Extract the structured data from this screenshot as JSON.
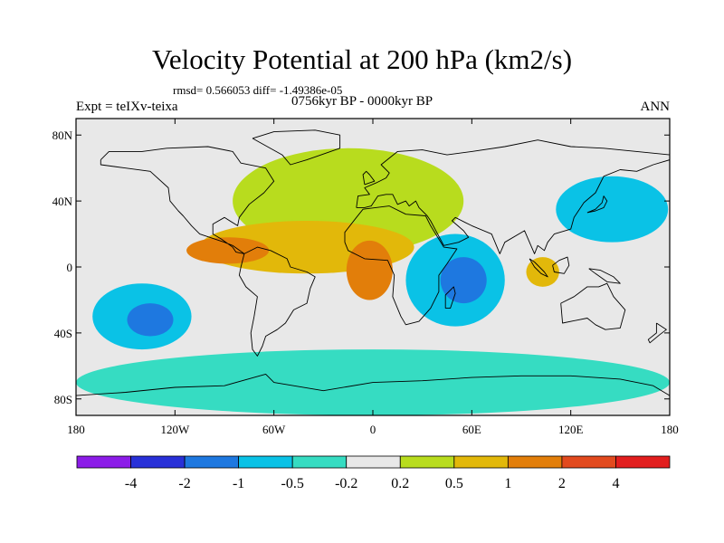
{
  "chart_data": {
    "type": "heatmap",
    "title": "Velocity Potential at 200 hPa (km2/s)",
    "stats_text": "rmsd= 0.566053 diff= -1.49386e-05",
    "left_label": "Expt = teIXv-teixa",
    "center_label": "0756kyr BP - 0000kyr BP",
    "right_label": "ANN",
    "x_ticks": [
      {
        "value": -180,
        "label": "180"
      },
      {
        "value": -120,
        "label": "120W"
      },
      {
        "value": -60,
        "label": "60W"
      },
      {
        "value": 0,
        "label": "0"
      },
      {
        "value": 60,
        "label": "60E"
      },
      {
        "value": 120,
        "label": "120E"
      },
      {
        "value": 180,
        "label": "180"
      }
    ],
    "y_ticks": [
      {
        "value": 80,
        "label": "80N"
      },
      {
        "value": 40,
        "label": "40N"
      },
      {
        "value": 0,
        "label": "0"
      },
      {
        "value": -40,
        "label": "40S"
      },
      {
        "value": -80,
        "label": "80S"
      }
    ],
    "x_range": [
      -180,
      180
    ],
    "y_range": [
      -90,
      90
    ],
    "colorbar": {
      "colors": [
        "#8c1ce8",
        "#2830d8",
        "#1e78e0",
        "#0ac2e6",
        "#36dcc2",
        "#e8e8e8",
        "#b8dc1e",
        "#e2b80a",
        "#e27e0a",
        "#e24a1e",
        "#e21e1e"
      ],
      "labels": [
        "-4",
        "-2",
        "-1",
        "-0.5",
        "-0.2",
        "0.2",
        "0.5",
        "1",
        "2",
        "4"
      ]
    },
    "fields": [
      {
        "name": "north-atlantic-eurasia-positive",
        "level": 0.35,
        "lon": -15,
        "lat": 40,
        "rx": 70,
        "ry": 32
      },
      {
        "name": "atlantic-positive",
        "level": 0.8,
        "lon": -40,
        "lat": 12,
        "rx": 65,
        "ry": 16
      },
      {
        "name": "caribbean-positive-core",
        "level": 1.5,
        "lon": -88,
        "lat": 10,
        "rx": 25,
        "ry": 8
      },
      {
        "name": "africa-positive-core",
        "level": 1.6,
        "lon": -2,
        "lat": -2,
        "rx": 14,
        "ry": 18
      },
      {
        "name": "indian-ocean-negative",
        "level": -0.7,
        "lon": 50,
        "lat": -8,
        "rx": 30,
        "ry": 28
      },
      {
        "name": "indian-ocean-negative-core",
        "level": -1.4,
        "lon": 55,
        "lat": -8,
        "rx": 14,
        "ry": 14
      },
      {
        "name": "north-pacific-negative",
        "level": -0.6,
        "lon": 145,
        "lat": 35,
        "rx": 34,
        "ry": 20
      },
      {
        "name": "south-pacific-negative",
        "level": -0.7,
        "lon": -140,
        "lat": -30,
        "rx": 30,
        "ry": 20
      },
      {
        "name": "south-pacific-negative-core",
        "level": -1.3,
        "lon": -135,
        "lat": -32,
        "rx": 14,
        "ry": 10
      },
      {
        "name": "maritime-continent-positive",
        "level": 0.9,
        "lon": 103,
        "lat": -3,
        "rx": 10,
        "ry": 9
      },
      {
        "name": "southern-ocean-negative",
        "level": -0.35,
        "lon": 0,
        "lat": -70,
        "rx": 180,
        "ry": 20
      }
    ]
  }
}
